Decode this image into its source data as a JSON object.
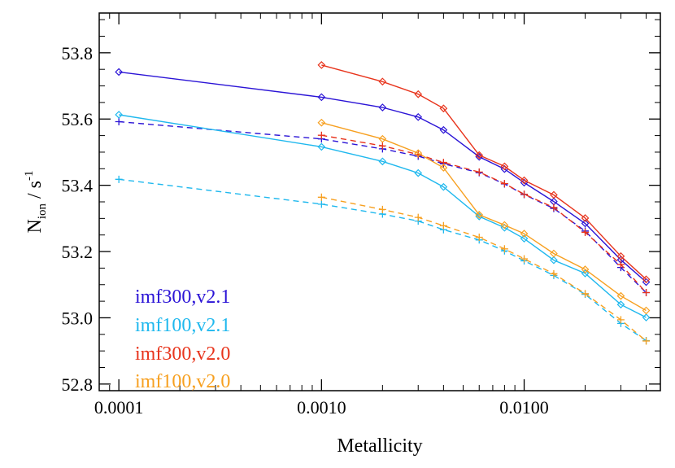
{
  "chart_data": {
    "type": "line",
    "title": "",
    "xlabel": "Metallicity",
    "ylabel": {
      "main": "N",
      "sub": "ion",
      "sep": " / s",
      "sup": "-1"
    },
    "x_scale": "log",
    "xlim": [
      8e-05,
      0.047
    ],
    "ylim": [
      52.78,
      53.92
    ],
    "x_ticks": [
      0.0001,
      0.001,
      0.01
    ],
    "x_tick_labels": [
      "0.0001",
      "0.0010",
      "0.0100"
    ],
    "y_ticks": [
      52.8,
      53.0,
      53.2,
      53.4,
      53.6,
      53.8
    ],
    "y_tick_labels": [
      "52.8",
      "53.0",
      "53.2",
      "53.4",
      "53.6",
      "53.8"
    ],
    "legend_position": "bottom-left",
    "series": [
      {
        "name": "imf300,v2.1",
        "color": "#2b14d6",
        "solid": {
          "marker": "diamond",
          "x": [
            0.0001,
            0.001,
            0.002,
            0.003,
            0.004,
            0.006,
            0.008,
            0.01,
            0.014,
            0.02,
            0.03,
            0.04
          ],
          "y": [
            53.742,
            53.666,
            53.635,
            53.606,
            53.567,
            53.486,
            53.449,
            53.408,
            53.351,
            53.285,
            53.175,
            53.108
          ]
        },
        "dashed": {
          "marker": "plus",
          "x": [
            0.0001,
            0.001,
            0.002,
            0.003,
            0.004,
            0.006,
            0.008,
            0.01,
            0.014,
            0.02,
            0.03,
            0.04
          ],
          "y": [
            53.592,
            53.54,
            53.51,
            53.488,
            53.465,
            53.438,
            53.404,
            53.372,
            53.33,
            53.262,
            53.152,
            53.076
          ]
        }
      },
      {
        "name": "imf100,v2.1",
        "color": "#1fb8ee",
        "solid": {
          "marker": "diamond",
          "x": [
            0.0001,
            0.001,
            0.002,
            0.003,
            0.004,
            0.006,
            0.008,
            0.01,
            0.014,
            0.02,
            0.03,
            0.04
          ],
          "y": [
            53.613,
            53.516,
            53.472,
            53.437,
            53.395,
            53.306,
            53.272,
            53.239,
            53.174,
            53.134,
            53.04,
            53.001
          ]
        },
        "dashed": {
          "marker": "plus",
          "x": [
            0.0001,
            0.001,
            0.002,
            0.003,
            0.004,
            0.006,
            0.008,
            0.01,
            0.014,
            0.02,
            0.03,
            0.04
          ],
          "y": [
            53.418,
            53.343,
            53.313,
            53.292,
            53.266,
            53.235,
            53.202,
            53.172,
            53.128,
            53.071,
            52.983,
            52.931
          ]
        }
      },
      {
        "name": "imf300,v2.0",
        "color": "#e8341c",
        "solid": {
          "marker": "diamond",
          "x": [
            0.001,
            0.002,
            0.003,
            0.004,
            0.006,
            0.008,
            0.01,
            0.014,
            0.02,
            0.03,
            0.04
          ],
          "y": [
            53.763,
            53.713,
            53.675,
            53.632,
            53.491,
            53.457,
            53.415,
            53.371,
            53.301,
            53.186,
            53.116
          ]
        },
        "dashed": {
          "marker": "plus",
          "x": [
            0.001,
            0.002,
            0.003,
            0.004,
            0.006,
            0.008,
            0.01,
            0.014,
            0.02,
            0.03,
            0.04
          ],
          "y": [
            53.551,
            53.519,
            53.493,
            53.469,
            53.44,
            53.405,
            53.373,
            53.333,
            53.258,
            53.161,
            53.076
          ]
        }
      },
      {
        "name": "imf100,v2.0",
        "color": "#f7a020",
        "solid": {
          "marker": "diamond",
          "x": [
            0.001,
            0.002,
            0.003,
            0.004,
            0.006,
            0.008,
            0.01,
            0.014,
            0.02,
            0.03,
            0.04
          ],
          "y": [
            53.589,
            53.54,
            53.497,
            53.453,
            53.311,
            53.28,
            53.254,
            53.194,
            53.146,
            53.066,
            53.022
          ]
        },
        "dashed": {
          "marker": "plus",
          "x": [
            0.001,
            0.002,
            0.003,
            0.004,
            0.006,
            0.008,
            0.01,
            0.014,
            0.02,
            0.03,
            0.04
          ],
          "y": [
            53.364,
            53.327,
            53.303,
            53.278,
            53.243,
            53.208,
            53.178,
            53.133,
            53.073,
            52.994,
            52.93
          ]
        }
      }
    ]
  }
}
